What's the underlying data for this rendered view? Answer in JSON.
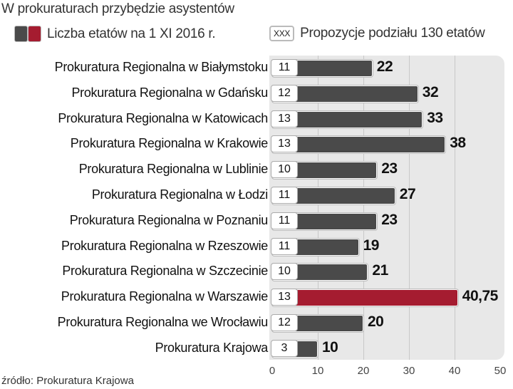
{
  "chart_data": {
    "type": "bar",
    "orientation": "horizontal",
    "title": "W prokuraturach przybędzie asystentów",
    "legend": {
      "current_label": "Liczba etatów na 1 XI 2016 r.",
      "proposal_symbol": "XXX",
      "proposal_label": "Propozycje podziału 130 etatów"
    },
    "categories": [
      "Prokuratura Regionalna w Białymstoku",
      "Prokuratura Regionalna w Gdańsku",
      "Prokuratura Regionalna w Katowicach",
      "Prokuratura Regionalna w Krakowie",
      "Prokuratura Regionalna w Lublinie",
      "Prokuratura Regionalna w Łodzi",
      "Prokuratura Regionalna w Poznaniu",
      "Prokuratura Regionalna w Rzeszowie",
      "Prokuratura Regionalna w Szczecinie",
      "Prokuratura Regionalna w Warszawie",
      "Prokuratura Regionalna we Wrocławiu",
      "Prokuratura Krajowa"
    ],
    "series": [
      {
        "name": "Liczba etatów na 1 XI 2016 r.",
        "values": [
          22,
          32,
          33,
          38,
          23,
          27,
          23,
          19,
          21,
          40.75,
          20,
          10
        ],
        "labels": [
          "22",
          "32",
          "33",
          "38",
          "23",
          "27",
          "23",
          "19",
          "21",
          "40,75",
          "20",
          "10"
        ]
      },
      {
        "name": "Propozycje podziału 130 etatów",
        "values": [
          11,
          12,
          13,
          13,
          10,
          11,
          11,
          11,
          10,
          13,
          12,
          3
        ]
      }
    ],
    "highlight_index": 9,
    "colors": {
      "bar": "#4a4a4a",
      "highlight": "#a51c30",
      "panel": "#e8e8e8"
    },
    "xlim": [
      0,
      50
    ],
    "xticks": [
      "0",
      "10",
      "20",
      "30",
      "40",
      "50"
    ],
    "grid": true
  },
  "source": "źródło: Prokuratura Krajowa"
}
